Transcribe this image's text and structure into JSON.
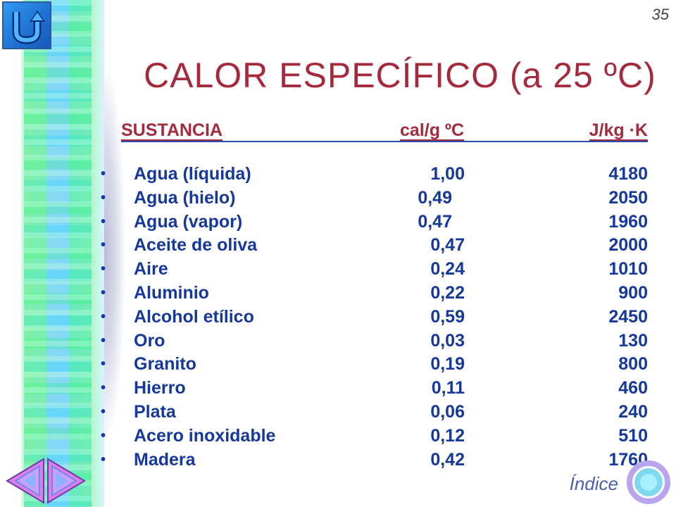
{
  "page_number": "35",
  "title": "CALOR ESPECÍFICO (a 25 ºC)",
  "header": {
    "substance": "SUSTANCIA",
    "cal": "cal/g ºC",
    "jkg": "J/kg ·K"
  },
  "bullet": "•",
  "rows": [
    {
      "name": "Agua (líquida)",
      "cal": "1,00",
      "jkg": "4180"
    },
    {
      "name": "Agua (hielo)",
      "cal": "0,49",
      "jkg": "2050"
    },
    {
      "name": "Agua (vapor)",
      "cal": "0,47",
      "jkg": "1960"
    },
    {
      "name": "Aceite de oliva",
      "cal": "0,47",
      "jkg": "2000"
    },
    {
      "name": "Aire",
      "cal": "0,24",
      "jkg": "1010"
    },
    {
      "name": "Aluminio",
      "cal": "0,22",
      "jkg": "900"
    },
    {
      "name": "Alcohol etílico",
      "cal": "0,59",
      "jkg": "2450"
    },
    {
      "name": "Oro",
      "cal": "0,03",
      "jkg": "130"
    },
    {
      "name": "Granito",
      "cal": "0,19",
      "jkg": "800"
    },
    {
      "name": "Hierro",
      "cal": "0,11",
      "jkg": "460"
    },
    {
      "name": "Plata",
      "cal": "0,06",
      "jkg": "240"
    },
    {
      "name": "Acero inoxidable",
      "cal": "0,12",
      "jkg": "510"
    },
    {
      "name": "Madera",
      "cal": "0,42",
      "jkg": "1760"
    }
  ],
  "index_link": "Índice",
  "icons": {
    "home": "u-turn-back-icon",
    "previous": "previous-arrow-icon",
    "next": "next-arrow-icon",
    "index": "index-ring-icon"
  },
  "colors": {
    "title": "#a42b3d",
    "body_text": "#16389a",
    "rule": "#2a4bb0",
    "button": "#1f6fd0"
  }
}
